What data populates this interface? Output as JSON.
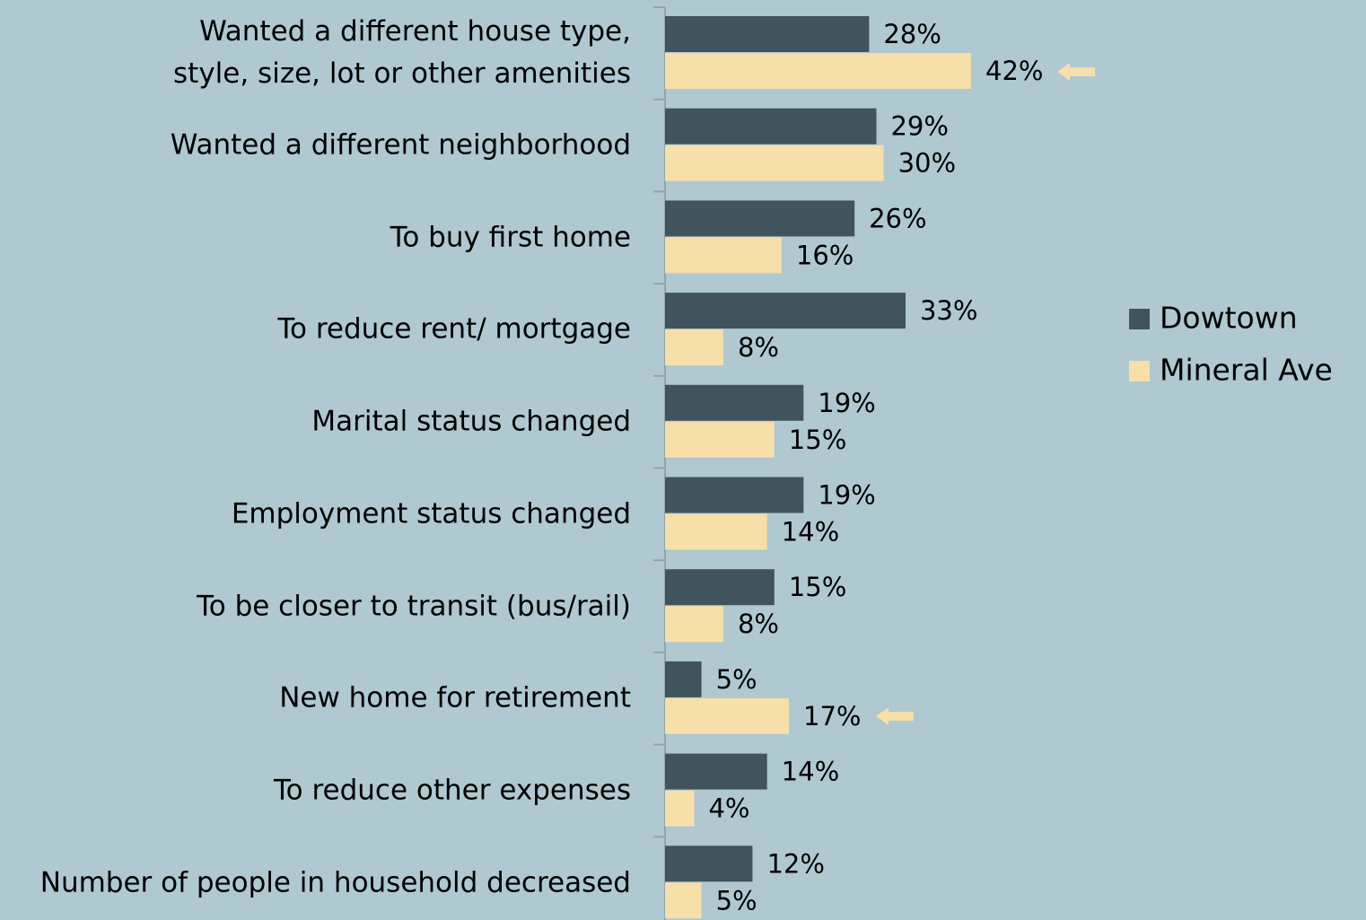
{
  "chart_data": {
    "type": "bar",
    "orientation": "horizontal",
    "categories": [
      "Wanted a different house type,\nstyle, size, lot or other amenities",
      "Wanted a different neighborhood",
      "To buy first home",
      "To reduce rent/ mortgage",
      "Marital status changed",
      "Employment status changed",
      "To be closer to transit (bus/rail)",
      "New home for retirement",
      "To reduce other expenses",
      "Number of people in household decreased"
    ],
    "series": [
      {
        "name": "Dowtown",
        "color": "#41545e",
        "values": [
          28,
          29,
          26,
          33,
          19,
          19,
          15,
          5,
          14,
          12
        ],
        "value_labels": [
          "28%",
          "29%",
          "26%",
          "33%",
          "19%",
          "19%",
          "15%",
          "5%",
          "14%",
          "12%"
        ]
      },
      {
        "name": "Mineral Ave",
        "color": "#f6dfa8",
        "values": [
          42,
          30,
          16,
          8,
          15,
          14,
          8,
          17,
          4,
          5
        ],
        "value_labels": [
          "42%",
          "30%",
          "16%",
          "8%",
          "15%",
          "14%",
          "8%",
          "17%",
          "4%",
          "5%"
        ]
      }
    ],
    "legend": "right"
  }
}
